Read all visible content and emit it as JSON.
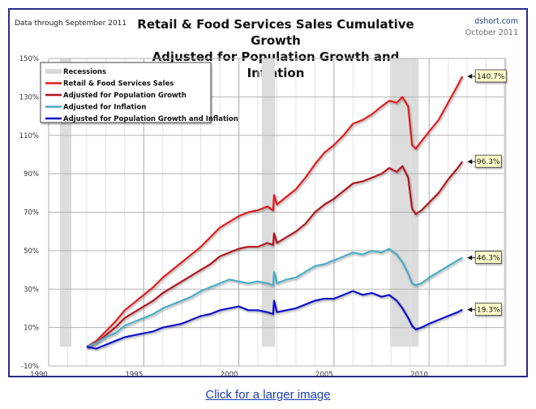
{
  "header": {
    "note": "Data through September 2011",
    "title_line1": "Retail & Food Services Sales Cumulative Growth",
    "title_line2": "Adjusted for Population Growth and Inflation",
    "source": "dshort.com",
    "date": "October 2011"
  },
  "link_text": "Click for a larger image",
  "chart_data": {
    "type": "line",
    "title": "Retail & Food Services Sales Cumulative Growth Adjusted for Population Growth and Inflation",
    "xlabel": "",
    "ylabel": "",
    "xlim": [
      1990,
      2014
    ],
    "ylim": [
      -10,
      150
    ],
    "x_ticks": [
      "1990",
      "1995",
      "2000",
      "2005",
      "2010"
    ],
    "y_ticks": [
      "150%",
      "130%",
      "110%",
      "90%",
      "70%",
      "50%",
      "30%",
      "10%",
      "-10%"
    ],
    "grid": true,
    "legend_position": "top-left",
    "recessions": [
      {
        "start": 1990.6,
        "end": 1991.2
      },
      {
        "start": 2001.2,
        "end": 2001.9
      },
      {
        "start": 2007.95,
        "end": 2009.45
      }
    ],
    "legend": [
      {
        "label": "Recessions",
        "color": "#d9d9d9",
        "kind": "band"
      },
      {
        "label": "Retail & Food Services Sales",
        "color": "#e01e1e",
        "kind": "line"
      },
      {
        "label": "Adjusted for Population Growth",
        "color": "#b0141a",
        "kind": "line"
      },
      {
        "label": "Adjusted for Inflation",
        "color": "#4bacc6",
        "kind": "line"
      },
      {
        "label": "Adjusted for Population Growth and Inflation",
        "color": "#1010c8",
        "kind": "line"
      }
    ],
    "series": [
      {
        "name": "Retail & Food Services Sales",
        "color": "#e01e1e",
        "x": [
          1992.0,
          1992.5,
          1993.0,
          1993.5,
          1994.0,
          1994.5,
          1995.0,
          1995.5,
          1996.0,
          1996.5,
          1997.0,
          1997.5,
          1998.0,
          1998.5,
          1999.0,
          1999.5,
          2000.0,
          2000.5,
          2001.0,
          2001.5,
          2001.8,
          2001.85,
          2002.0,
          2002.5,
          2003.0,
          2003.5,
          2004.0,
          2004.5,
          2005.0,
          2005.5,
          2006.0,
          2006.5,
          2007.0,
          2007.5,
          2007.9,
          2008.3,
          2008.6,
          2008.9,
          2009.1,
          2009.3,
          2009.6,
          2010.0,
          2010.5,
          2011.0,
          2011.5,
          2011.75
        ],
        "values": [
          0,
          3,
          8,
          13,
          19,
          23,
          27,
          31,
          36,
          40,
          44,
          48,
          52,
          57,
          62,
          65,
          68,
          70,
          71,
          73,
          71,
          79,
          74,
          78,
          82,
          88,
          95,
          101,
          105,
          110,
          116,
          118,
          121,
          125,
          128,
          127,
          130,
          125,
          105,
          103,
          107,
          112,
          118,
          127,
          136,
          140.7
        ]
      },
      {
        "name": "Adjusted for Population Growth",
        "color": "#b0141a",
        "x": [
          1992.0,
          1992.5,
          1993.0,
          1993.5,
          1994.0,
          1994.5,
          1995.0,
          1995.5,
          1996.0,
          1996.5,
          1997.0,
          1997.5,
          1998.0,
          1998.5,
          1999.0,
          1999.5,
          2000.0,
          2000.5,
          2001.0,
          2001.5,
          2001.8,
          2001.85,
          2002.0,
          2002.5,
          2003.0,
          2003.5,
          2004.0,
          2004.5,
          2005.0,
          2005.5,
          2006.0,
          2006.5,
          2007.0,
          2007.5,
          2007.9,
          2008.3,
          2008.6,
          2008.9,
          2009.1,
          2009.3,
          2009.6,
          2010.0,
          2010.5,
          2011.0,
          2011.5,
          2011.75
        ],
        "values": [
          0,
          2,
          6,
          10,
          15,
          18,
          21,
          24,
          28,
          31,
          34,
          37,
          40,
          43,
          47,
          49,
          51,
          52,
          52,
          54,
          53,
          59,
          54,
          57,
          60,
          64,
          70,
          74,
          77,
          81,
          85,
          86,
          88,
          90,
          93,
          91,
          94,
          88,
          72,
          69,
          71,
          75,
          80,
          87,
          93,
          96.3
        ]
      },
      {
        "name": "Adjusted for Inflation",
        "color": "#4bacc6",
        "x": [
          1992.0,
          1992.5,
          1993.0,
          1993.5,
          1994.0,
          1994.5,
          1995.0,
          1995.5,
          1996.0,
          1996.5,
          1997.0,
          1997.5,
          1998.0,
          1998.5,
          1999.0,
          1999.5,
          2000.0,
          2000.5,
          2001.0,
          2001.5,
          2001.8,
          2001.85,
          2002.0,
          2002.5,
          2003.0,
          2003.5,
          2004.0,
          2004.5,
          2005.0,
          2005.5,
          2006.0,
          2006.5,
          2007.0,
          2007.5,
          2007.9,
          2008.3,
          2008.6,
          2008.9,
          2009.1,
          2009.3,
          2009.6,
          2010.0,
          2010.5,
          2011.0,
          2011.5,
          2011.75
        ],
        "values": [
          0,
          2,
          5,
          7,
          11,
          13,
          15,
          17,
          20,
          22,
          24,
          26,
          29,
          31,
          33,
          35,
          34,
          33,
          34,
          33,
          32,
          39,
          33,
          35,
          36,
          39,
          42,
          43,
          45,
          47,
          49,
          48,
          50,
          49,
          51,
          48,
          44,
          38,
          33,
          32,
          33,
          36,
          39,
          42,
          45,
          46.3
        ]
      },
      {
        "name": "Adjusted for Population Growth and Inflation",
        "color": "#1010c8",
        "x": [
          1992.0,
          1992.5,
          1993.0,
          1993.5,
          1994.0,
          1994.5,
          1995.0,
          1995.5,
          1996.0,
          1996.5,
          1997.0,
          1997.5,
          1998.0,
          1998.5,
          1999.0,
          1999.5,
          2000.0,
          2000.5,
          2001.0,
          2001.5,
          2001.8,
          2001.85,
          2002.0,
          2002.5,
          2003.0,
          2003.5,
          2004.0,
          2004.5,
          2005.0,
          2005.5,
          2006.0,
          2006.5,
          2007.0,
          2007.5,
          2007.9,
          2008.3,
          2008.6,
          2008.9,
          2009.1,
          2009.3,
          2009.6,
          2010.0,
          2010.5,
          2011.0,
          2011.5,
          2011.75
        ],
        "values": [
          0,
          -1,
          1,
          3,
          5,
          6,
          7,
          8,
          10,
          11,
          12,
          14,
          16,
          17,
          19,
          20,
          21,
          19,
          19,
          18,
          17,
          24,
          18,
          19,
          20,
          22,
          24,
          25,
          25,
          27,
          29,
          27,
          28,
          26,
          27,
          24,
          20,
          15,
          11,
          9,
          10,
          12,
          14,
          16,
          18,
          19.3
        ]
      }
    ],
    "annotations": [
      {
        "series": "Retail & Food Services Sales",
        "text": "140.7%",
        "x": 2011.75,
        "y": 140.7
      },
      {
        "series": "Adjusted for Population Growth",
        "text": "96.3%",
        "x": 2011.75,
        "y": 96.3
      },
      {
        "series": "Adjusted for Inflation",
        "text": "46.3%",
        "x": 2011.75,
        "y": 46.3
      },
      {
        "series": "Adjusted for Population Growth and Inflation",
        "text": "19.3%",
        "x": 2011.75,
        "y": 19.3
      }
    ]
  }
}
